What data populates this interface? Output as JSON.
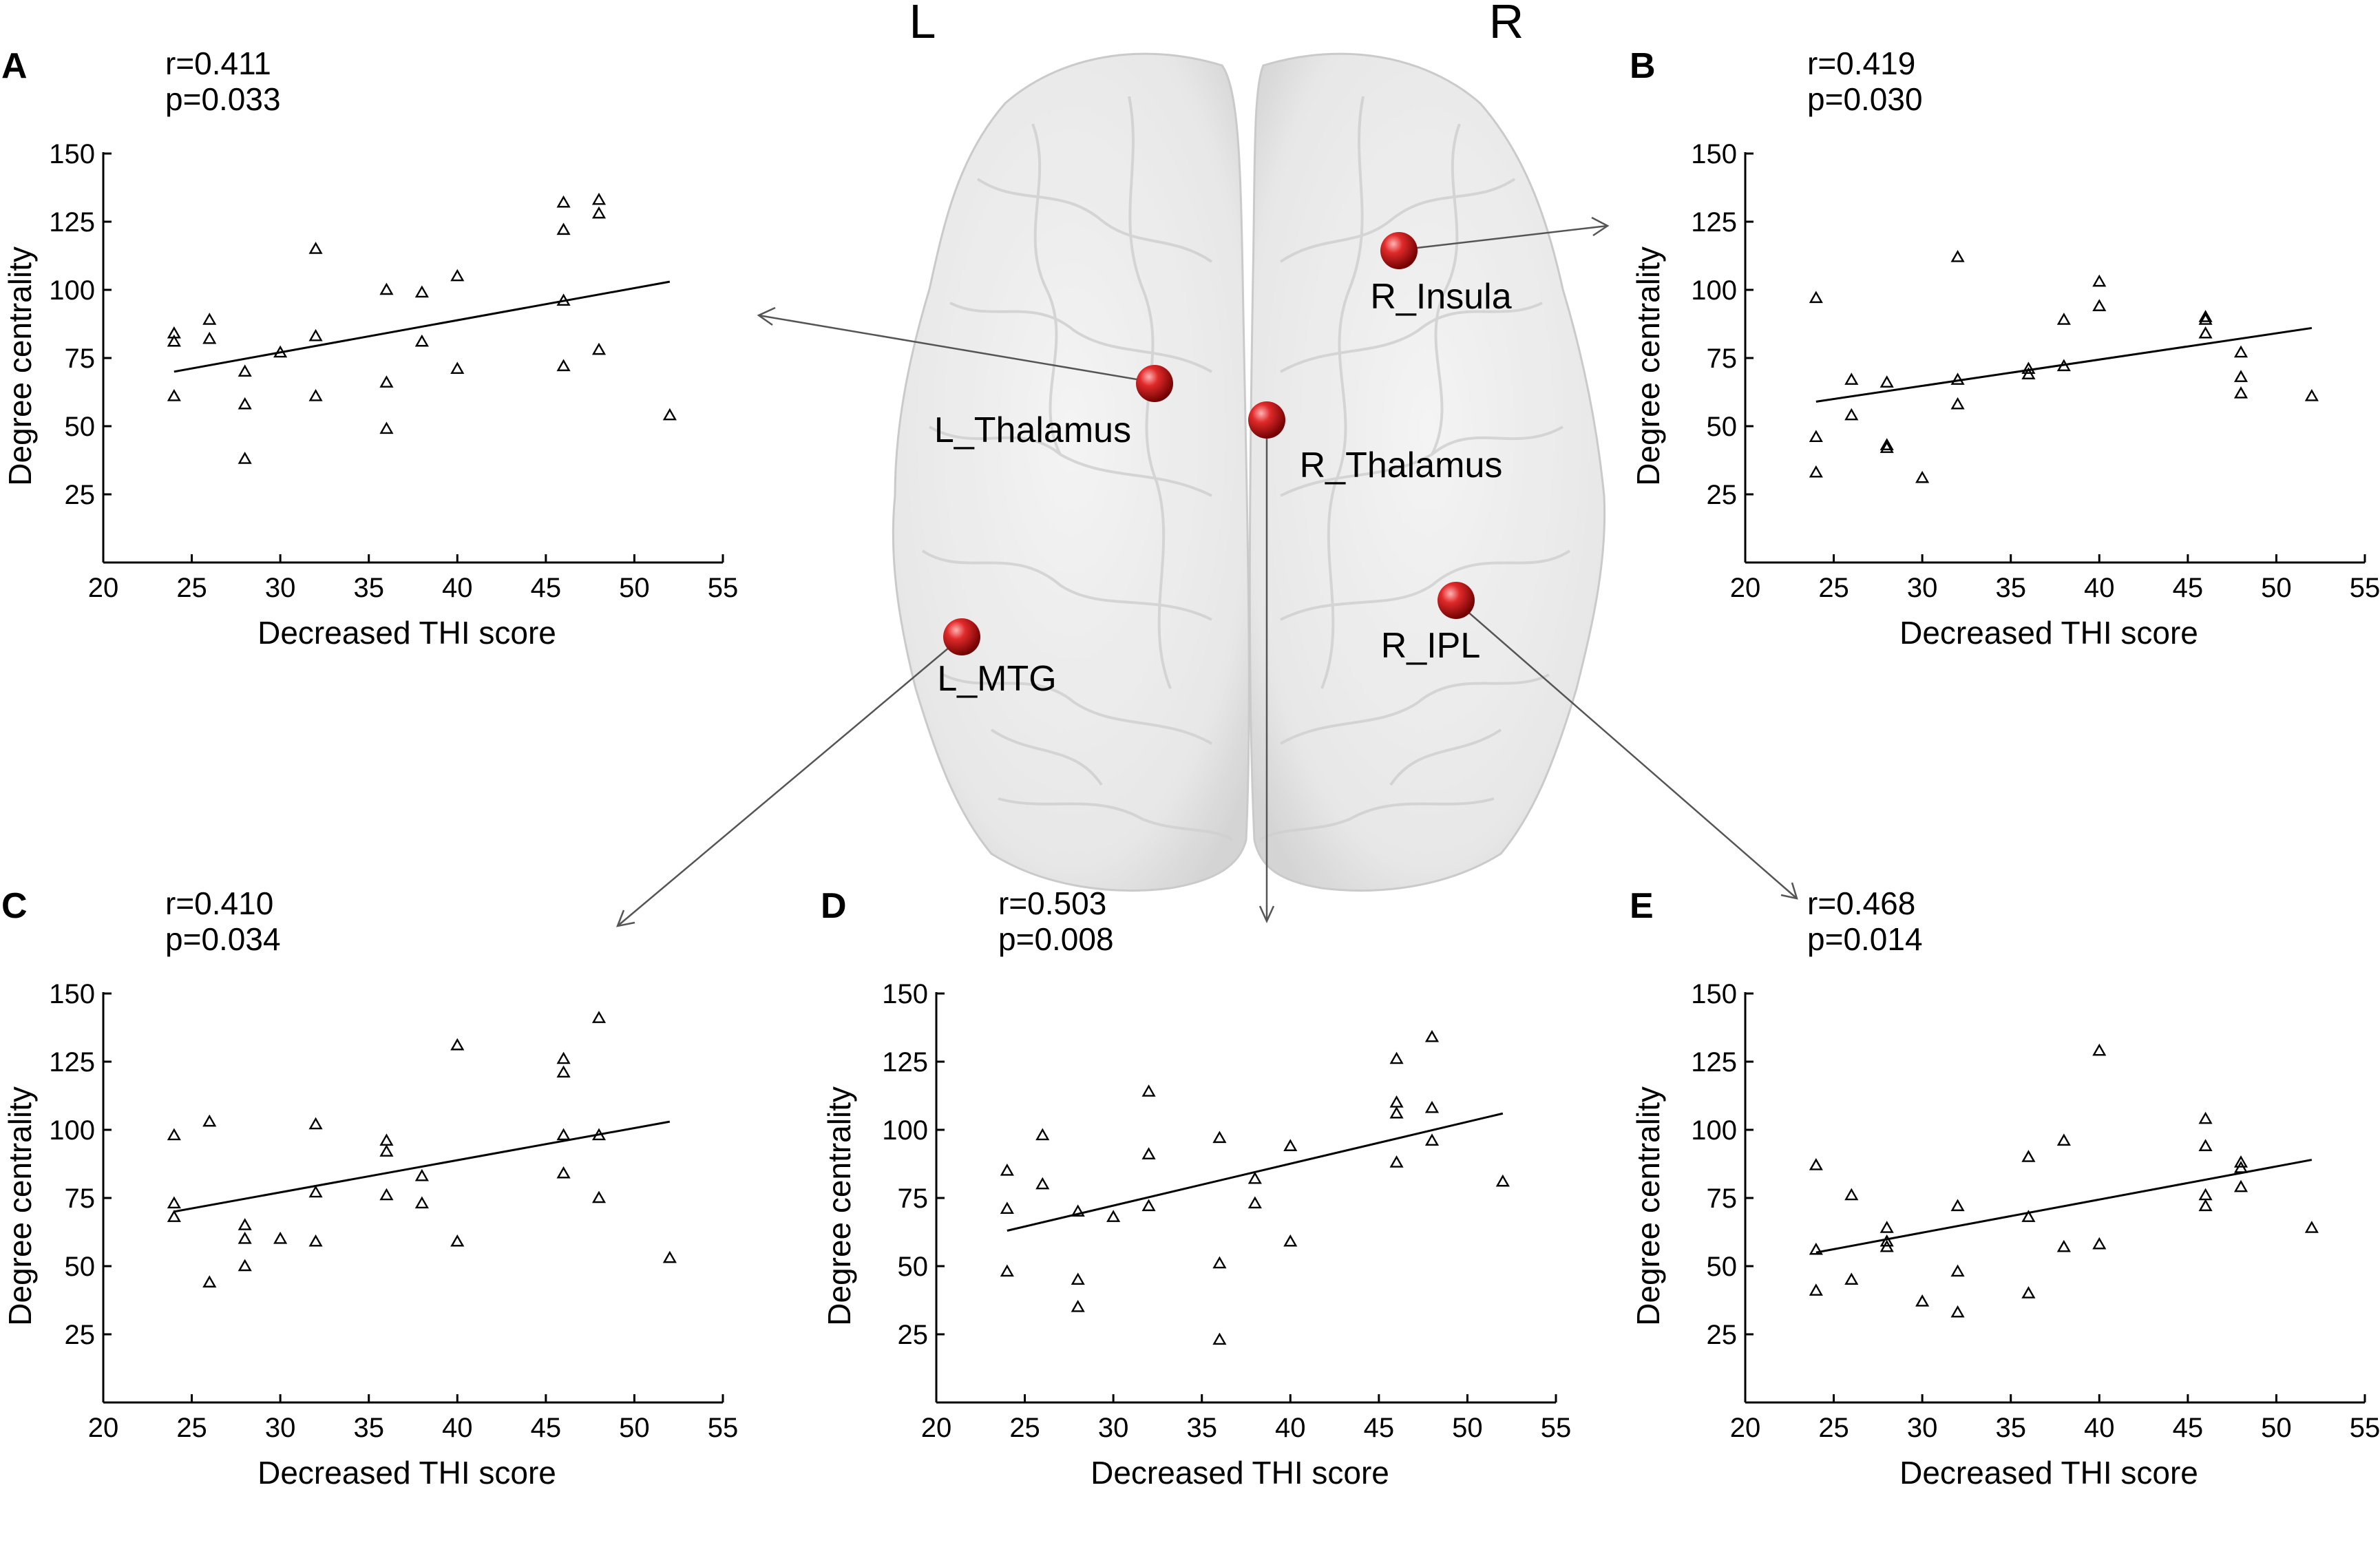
{
  "brain": {
    "left_label": "L",
    "right_label": "R",
    "node_color": "#cc1111",
    "regions": [
      {
        "id": "L_Thalamus",
        "label": "L_Thalamus",
        "panel": "A"
      },
      {
        "id": "R_Insula",
        "label": "R_Insula",
        "panel": "B"
      },
      {
        "id": "L_MTG",
        "label": "L_MTG",
        "panel": "C"
      },
      {
        "id": "R_Thalamus",
        "label": "R_Thalamus",
        "panel": "D"
      },
      {
        "id": "R_IPL",
        "label": "R_IPL",
        "panel": "E"
      }
    ]
  },
  "chart_data": [
    {
      "panel": "A",
      "type": "scatter",
      "marker": "triangle",
      "stat_r": "r=0.411",
      "stat_p": "p=0.033",
      "xlabel": "Decreased THI score",
      "ylabel": "Degree centrality",
      "xlim": [
        20,
        55
      ],
      "ylim": [
        0,
        150
      ],
      "xticks": [
        20,
        25,
        30,
        35,
        40,
        45,
        50,
        55
      ],
      "yticks": [
        25,
        50,
        75,
        100,
        125,
        150
      ],
      "fit_line": [
        [
          24,
          70
        ],
        [
          52,
          103
        ]
      ],
      "points": [
        [
          24,
          84
        ],
        [
          24,
          81
        ],
        [
          24,
          61
        ],
        [
          26,
          89
        ],
        [
          26,
          82
        ],
        [
          28,
          70
        ],
        [
          28,
          58
        ],
        [
          28,
          38
        ],
        [
          30,
          77
        ],
        [
          32,
          115
        ],
        [
          32,
          83
        ],
        [
          32,
          61
        ],
        [
          36,
          100
        ],
        [
          36,
          66
        ],
        [
          36,
          49
        ],
        [
          38,
          99
        ],
        [
          38,
          81
        ],
        [
          40,
          105
        ],
        [
          40,
          71
        ],
        [
          46,
          132
        ],
        [
          46,
          122
        ],
        [
          46,
          96
        ],
        [
          46,
          72
        ],
        [
          48,
          133
        ],
        [
          48,
          128
        ],
        [
          48,
          78
        ],
        [
          52,
          54
        ]
      ]
    },
    {
      "panel": "B",
      "type": "scatter",
      "marker": "triangle",
      "stat_r": "r=0.419",
      "stat_p": "p=0.030",
      "xlabel": "Decreased THI score",
      "ylabel": "Degree centrality",
      "xlim": [
        20,
        55
      ],
      "ylim": [
        0,
        150
      ],
      "xticks": [
        20,
        25,
        30,
        35,
        40,
        45,
        50,
        55
      ],
      "yticks": [
        25,
        50,
        75,
        100,
        125,
        150
      ],
      "fit_line": [
        [
          24,
          59
        ],
        [
          52,
          86
        ]
      ],
      "points": [
        [
          24,
          97
        ],
        [
          24,
          46
        ],
        [
          24,
          33
        ],
        [
          26,
          67
        ],
        [
          26,
          54
        ],
        [
          28,
          66
        ],
        [
          28,
          43
        ],
        [
          28,
          42
        ],
        [
          30,
          31
        ],
        [
          32,
          112
        ],
        [
          32,
          67
        ],
        [
          32,
          58
        ],
        [
          36,
          71
        ],
        [
          36,
          69
        ],
        [
          38,
          89
        ],
        [
          38,
          72
        ],
        [
          40,
          103
        ],
        [
          40,
          94
        ],
        [
          46,
          90
        ],
        [
          46,
          89
        ],
        [
          46,
          84
        ],
        [
          48,
          77
        ],
        [
          48,
          68
        ],
        [
          48,
          62
        ],
        [
          52,
          61
        ]
      ]
    },
    {
      "panel": "C",
      "type": "scatter",
      "marker": "triangle",
      "stat_r": "r=0.410",
      "stat_p": "p=0.034",
      "xlabel": "Decreased THI score",
      "ylabel": "Degree centrality",
      "xlim": [
        20,
        55
      ],
      "ylim": [
        0,
        150
      ],
      "xticks": [
        20,
        25,
        30,
        35,
        40,
        45,
        50,
        55
      ],
      "yticks": [
        25,
        50,
        75,
        100,
        125,
        150
      ],
      "fit_line": [
        [
          24,
          70
        ],
        [
          52,
          103
        ]
      ],
      "points": [
        [
          24,
          98
        ],
        [
          24,
          73
        ],
        [
          24,
          68
        ],
        [
          26,
          103
        ],
        [
          26,
          44
        ],
        [
          28,
          65
        ],
        [
          28,
          60
        ],
        [
          28,
          50
        ],
        [
          30,
          60
        ],
        [
          32,
          102
        ],
        [
          32,
          77
        ],
        [
          32,
          59
        ],
        [
          36,
          96
        ],
        [
          36,
          92
        ],
        [
          36,
          76
        ],
        [
          38,
          83
        ],
        [
          38,
          73
        ],
        [
          40,
          131
        ],
        [
          40,
          59
        ],
        [
          46,
          126
        ],
        [
          46,
          121
        ],
        [
          46,
          98
        ],
        [
          46,
          84
        ],
        [
          48,
          141
        ],
        [
          48,
          98
        ],
        [
          48,
          75
        ],
        [
          52,
          53
        ]
      ]
    },
    {
      "panel": "D",
      "type": "scatter",
      "marker": "triangle",
      "stat_r": "r=0.503",
      "stat_p": "p=0.008",
      "xlabel": "Decreased THI score",
      "ylabel": "Degree centrality",
      "xlim": [
        20,
        55
      ],
      "ylim": [
        0,
        150
      ],
      "xticks": [
        20,
        25,
        30,
        35,
        40,
        45,
        50,
        55
      ],
      "yticks": [
        25,
        50,
        75,
        100,
        125,
        150
      ],
      "fit_line": [
        [
          24,
          63
        ],
        [
          52,
          106
        ]
      ],
      "points": [
        [
          24,
          85
        ],
        [
          24,
          71
        ],
        [
          24,
          48
        ],
        [
          26,
          98
        ],
        [
          26,
          80
        ],
        [
          28,
          70
        ],
        [
          28,
          45
        ],
        [
          28,
          35
        ],
        [
          30,
          68
        ],
        [
          32,
          114
        ],
        [
          32,
          91
        ],
        [
          32,
          72
        ],
        [
          36,
          97
        ],
        [
          36,
          51
        ],
        [
          36,
          23
        ],
        [
          38,
          82
        ],
        [
          38,
          73
        ],
        [
          40,
          94
        ],
        [
          40,
          59
        ],
        [
          46,
          126
        ],
        [
          46,
          110
        ],
        [
          46,
          106
        ],
        [
          46,
          88
        ],
        [
          48,
          134
        ],
        [
          48,
          108
        ],
        [
          48,
          96
        ],
        [
          52,
          81
        ]
      ]
    },
    {
      "panel": "E",
      "type": "scatter",
      "marker": "triangle",
      "stat_r": "r=0.468",
      "stat_p": "p=0.014",
      "xlabel": "Decreased THI score",
      "ylabel": "Degree centrality",
      "xlim": [
        20,
        55
      ],
      "ylim": [
        0,
        150
      ],
      "xticks": [
        20,
        25,
        30,
        35,
        40,
        45,
        50,
        55
      ],
      "yticks": [
        25,
        50,
        75,
        100,
        125,
        150
      ],
      "fit_line": [
        [
          24,
          55
        ],
        [
          52,
          89
        ]
      ],
      "points": [
        [
          24,
          87
        ],
        [
          24,
          56
        ],
        [
          24,
          41
        ],
        [
          26,
          76
        ],
        [
          26,
          45
        ],
        [
          28,
          64
        ],
        [
          28,
          59
        ],
        [
          28,
          57
        ],
        [
          30,
          37
        ],
        [
          32,
          72
        ],
        [
          32,
          48
        ],
        [
          32,
          33
        ],
        [
          36,
          90
        ],
        [
          36,
          68
        ],
        [
          36,
          40
        ],
        [
          38,
          96
        ],
        [
          38,
          57
        ],
        [
          40,
          129
        ],
        [
          40,
          58
        ],
        [
          46,
          104
        ],
        [
          46,
          94
        ],
        [
          46,
          76
        ],
        [
          46,
          72
        ],
        [
          48,
          88
        ],
        [
          48,
          86
        ],
        [
          48,
          79
        ],
        [
          52,
          64
        ]
      ]
    }
  ]
}
